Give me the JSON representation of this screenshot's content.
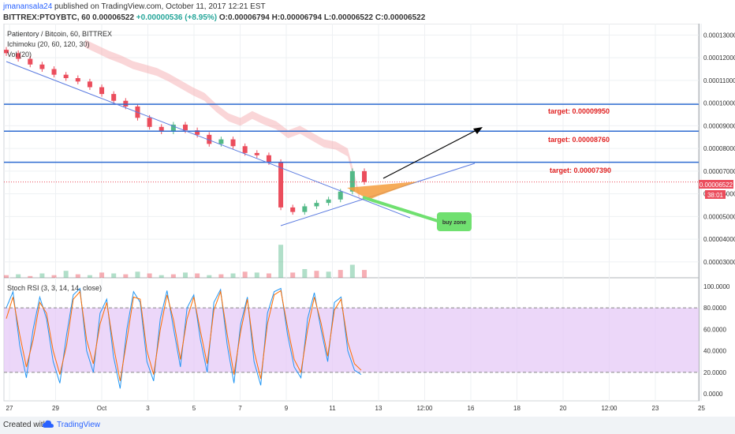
{
  "header": {
    "user": "jmanansala24",
    "published": "published on TradingView.com, October 11, 2017 12:21 EST",
    "symbol": "BITTREX:PTOYBTC, 60",
    "last": "0.00006522",
    "change": "+0.00000536 (+8.95%)",
    "o_label": "O:",
    "o_value": "0.00006794",
    "h_label": "H:",
    "h_value": "0.00006794",
    "l_label": "L:",
    "l_value": "0.00006522",
    "c_label": "C:",
    "c_value": "0.00006522"
  },
  "legend": {
    "title": "Patientory / Bitcoin, 60, BITTREX",
    "ichimoku": "Ichimoku (20, 60, 120, 30)",
    "vol": "Vol (20)"
  },
  "rsi_legend": "Stoch RSI (3, 3, 14, 14, close)",
  "annotations": {
    "target1": "target: 0.00009950",
    "target2": "target: 0.00008760",
    "target3": "target: 0.00007390",
    "buy_zone": "buy zone",
    "last_price": "0.00006522",
    "countdown": "38:01"
  },
  "footer": {
    "created": "Created with",
    "brand": "TradingView"
  },
  "colors": {
    "target_line": "#2e6bd1",
    "target_text": "#e02020",
    "candle_up": "#53b987",
    "candle_down": "#eb4d5c",
    "cloud": "#f5a3a8",
    "rsi_band": "#e4c6f7",
    "rsi_k": "#2196f3",
    "rsi_d": "#ff6d00",
    "buy_zone": "#70e070",
    "triangle": "#f59c3c"
  },
  "chart_data": [
    {
      "type": "candlestick",
      "title": "Patientory / Bitcoin, 60, BITTREX",
      "x_ticks": [
        "27",
        "29",
        "Oct",
        "3",
        "5",
        "7",
        "9",
        "11",
        "13",
        "12:00",
        "16",
        "18",
        "20",
        "12:00",
        "23",
        "25"
      ],
      "y_ticks": [
        "0.00013000",
        "0.00012000",
        "0.00011000",
        "0.00010000",
        "0.00009000",
        "0.00008000",
        "0.00007000",
        "0.00006000",
        "0.00005000",
        "0.00004000",
        "0.00003000"
      ],
      "ylim": [
        2.3e-05,
        0.000135
      ],
      "close_series": [
        0.000122,
        0.0001195,
        0.000117,
        0.000115,
        0.0001125,
        0.000111,
        0.0001095,
        0.000107,
        0.000104,
        0.000101,
        9.85e-05,
        9.35e-05,
        8.95e-05,
        8.75e-05,
        9.05e-05,
        8.8e-05,
        8.6e-05,
        8.2e-05,
        8.4e-05,
        8.1e-05,
        7.8e-05,
        7.7e-05,
        7.4e-05,
        5.4e-05,
        5.2e-05,
        5.45e-05,
        5.6e-05,
        5.75e-05,
        6.1e-05,
        7e-05,
        6.52e-05
      ],
      "target_levels": [
        9.95e-05,
        8.76e-05,
        7.39e-05
      ],
      "last_price": 6.522e-05,
      "volume": [
        3,
        4,
        2,
        5,
        3,
        8,
        4,
        3,
        6,
        5,
        4,
        7,
        5,
        3,
        4,
        6,
        5,
        3,
        4,
        5,
        7,
        6,
        5,
        38,
        6,
        10,
        8,
        7,
        9,
        15,
        9
      ]
    },
    {
      "type": "line",
      "title": "Stoch RSI (3, 3, 14, 14, close)",
      "y_ticks": [
        "100.0000",
        "80.0000",
        "60.0000",
        "40.0000",
        "20.0000",
        "0.0000"
      ],
      "ylim": [
        -5,
        105
      ],
      "band": [
        20,
        80
      ],
      "series": [
        {
          "values": [
            80,
            95,
            45,
            15,
            60,
            90,
            70,
            30,
            10,
            55,
            92,
            98,
            40,
            20,
            75,
            88,
            35,
            5,
            60,
            95,
            85,
            30,
            12,
            70,
            96,
            60,
            25,
            80,
            92,
            50,
            20,
            85,
            97,
            45,
            10,
            65,
            90,
            30,
            8,
            75,
            95,
            98,
            55,
            25,
            15,
            70,
            94,
            60,
            30,
            85,
            90,
            40,
            22,
            18
          ]
        },
        {
          "values": [
            70,
            90,
            55,
            25,
            50,
            85,
            75,
            40,
            18,
            45,
            88,
            95,
            50,
            28,
            65,
            85,
            45,
            12,
            50,
            90,
            88,
            40,
            18,
            60,
            92,
            68,
            32,
            70,
            90,
            58,
            28,
            78,
            95,
            55,
            18,
            58,
            88,
            40,
            14,
            65,
            92,
            96,
            62,
            32,
            20,
            60,
            90,
            66,
            35,
            78,
            88,
            48,
            28,
            22
          ]
        }
      ]
    }
  ]
}
